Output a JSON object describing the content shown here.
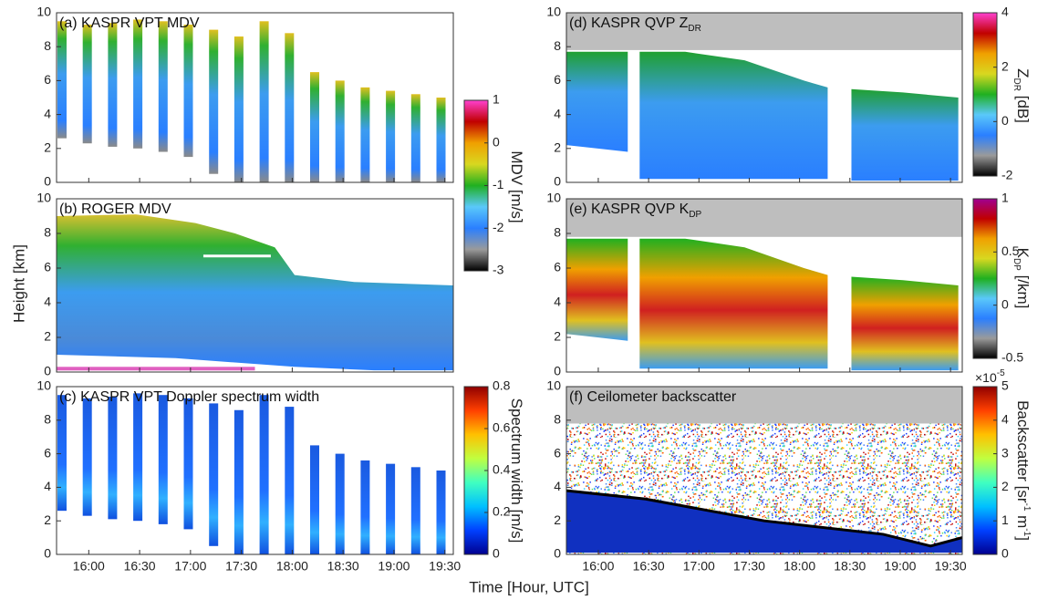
{
  "x_label": "Time [Hour, UTC]",
  "y_label": "Height [km]",
  "chart_data": [
    {
      "type": "heatmap",
      "title_parts": [
        {
          "text": "(a) KASPR VPT MDV"
        }
      ],
      "xlim": [
        "15:41",
        "19:35"
      ],
      "xticks": [
        "16:00",
        "16:30",
        "17:00",
        "17:30",
        "18:00",
        "18:30",
        "19:00",
        "19:30"
      ],
      "show_xtick_labels": false,
      "ylim": [
        0,
        10
      ],
      "yticks": [
        0,
        2,
        4,
        6,
        8,
        10
      ],
      "colorbar": {
        "lim": [
          -3,
          1
        ],
        "ticks": [
          -3,
          -2,
          -1,
          0,
          1
        ],
        "label_parts": [
          {
            "text": "MDV [m/s]"
          }
        ],
        "colormap": [
          "#000000",
          "#9a9a9a",
          "#2a7fff",
          "#5ac8fa",
          "#20b020",
          "#d8d820",
          "#f0a000",
          "#c00000",
          "#ff40d0"
        ]
      }
    },
    {
      "type": "heatmap",
      "title_parts": [
        {
          "text": "(b) ROGER MDV"
        }
      ],
      "xlim": [
        "15:41",
        "19:35"
      ],
      "xticks": [
        "16:00",
        "16:30",
        "17:00",
        "17:30",
        "18:00",
        "18:30",
        "19:00",
        "19:30"
      ],
      "show_xtick_labels": false,
      "ylim": [
        0,
        10
      ],
      "yticks": [
        0,
        2,
        4,
        6,
        8,
        10
      ]
    },
    {
      "type": "heatmap",
      "title_parts": [
        {
          "text": "(c) KASPR VPT Doppler spectrum width"
        }
      ],
      "xlim": [
        "15:41",
        "19:35"
      ],
      "xticks": [
        "16:00",
        "16:30",
        "17:00",
        "17:30",
        "18:00",
        "18:30",
        "19:00",
        "19:30"
      ],
      "show_xtick_labels": true,
      "ylim": [
        0,
        10
      ],
      "yticks": [
        0,
        2,
        4,
        6,
        8,
        10
      ],
      "colorbar": {
        "lim": [
          0,
          0.8
        ],
        "ticks": [
          0,
          0.2,
          0.4,
          0.6,
          0.8
        ],
        "label_parts": [
          {
            "text": "Spectrum width [m/s]"
          }
        ],
        "colormap": [
          "#00008f",
          "#0040ff",
          "#00c0ff",
          "#40ffc0",
          "#c0ff40",
          "#ffc000",
          "#ff4000",
          "#900000"
        ]
      }
    },
    {
      "type": "heatmap",
      "title_parts": [
        {
          "text": "(d) KASPR QVP Z"
        },
        {
          "text": "DR",
          "sub": true
        }
      ],
      "xlim": [
        "15:41",
        "19:37"
      ],
      "xticks": [
        "16:00",
        "16:30",
        "17:00",
        "17:30",
        "18:00",
        "18:30",
        "19:00",
        "19:30"
      ],
      "show_xtick_labels": false,
      "ylim": [
        0,
        10
      ],
      "yticks": [
        0,
        2,
        4,
        6,
        8,
        10
      ],
      "colorbar": {
        "lim": [
          -2,
          4
        ],
        "ticks": [
          -2,
          0,
          2,
          4
        ],
        "label_parts": [
          {
            "text": "Z"
          },
          {
            "text": "DR",
            "sub": true
          },
          {
            "text": " [dB]"
          }
        ],
        "colormap": [
          "#000000",
          "#9a9a9a",
          "#2a7fff",
          "#5ac8fa",
          "#20b020",
          "#d8d820",
          "#f0a000",
          "#c00000",
          "#ff40d0"
        ]
      }
    },
    {
      "type": "heatmap",
      "title_parts": [
        {
          "text": "(e) KASPR QVP K"
        },
        {
          "text": "DP",
          "sub": true
        }
      ],
      "xlim": [
        "15:41",
        "19:37"
      ],
      "xticks": [
        "16:00",
        "16:30",
        "17:00",
        "17:30",
        "18:00",
        "18:30",
        "19:00",
        "19:30"
      ],
      "show_xtick_labels": false,
      "ylim": [
        0,
        10
      ],
      "yticks": [
        0,
        2,
        4,
        6,
        8,
        10
      ],
      "colorbar": {
        "lim": [
          -0.5,
          1
        ],
        "ticks": [
          -0.5,
          0,
          0.5,
          1
        ],
        "label_parts": [
          {
            "text": "K"
          },
          {
            "text": "DP",
            "sub": true
          },
          {
            "text": " [/km]"
          }
        ],
        "colormap": [
          "#000000",
          "#9a9a9a",
          "#2a7fff",
          "#5ac8fa",
          "#20b020",
          "#d8d820",
          "#f0a000",
          "#c00000",
          "#a00090"
        ]
      }
    },
    {
      "type": "heatmap",
      "title_parts": [
        {
          "text": "(f) Ceilometer backscatter"
        }
      ],
      "xlim": [
        "15:41",
        "19:37"
      ],
      "xticks": [
        "16:00",
        "16:30",
        "17:00",
        "17:30",
        "18:00",
        "18:30",
        "19:00",
        "19:30"
      ],
      "show_xtick_labels": true,
      "ylim": [
        0,
        10
      ],
      "yticks": [
        0,
        2,
        4,
        6,
        8,
        10
      ],
      "colorbar": {
        "lim": [
          0,
          5
        ],
        "ticks": [
          0,
          1,
          2,
          3,
          4,
          5
        ],
        "multiplier_parts": [
          {
            "text": "×10"
          },
          {
            "text": "-5",
            "sup": true
          }
        ],
        "label_parts": [
          {
            "text": "Backscatter [sr"
          },
          {
            "text": "-1",
            "sup": true
          },
          {
            "text": " m"
          },
          {
            "text": "-1",
            "sup": true
          },
          {
            "text": "]"
          }
        ],
        "colormap": [
          "#00008f",
          "#0040ff",
          "#00c0ff",
          "#40ffc0",
          "#c0ff40",
          "#ffc000",
          "#ff4000",
          "#900000"
        ]
      }
    }
  ]
}
